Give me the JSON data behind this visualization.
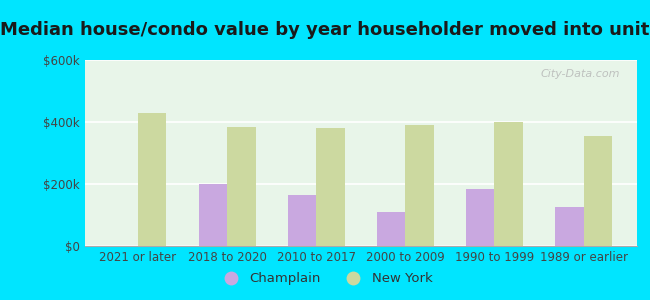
{
  "title": "Median house/condo value by year householder moved into unit",
  "categories": [
    "2021 or later",
    "2018 to 2020",
    "2010 to 2017",
    "2000 to 2009",
    "1990 to 1999",
    "1989 or earlier"
  ],
  "champlain_values": [
    null,
    200000,
    165000,
    110000,
    185000,
    125000
  ],
  "newyork_values": [
    430000,
    385000,
    380000,
    390000,
    400000,
    355000
  ],
  "champlain_color": "#c9a8e0",
  "newyork_color": "#ccd9a0",
  "background_outer": "#00e5ff",
  "background_inner": "#e8f5e9",
  "ylim": [
    0,
    600000
  ],
  "yticks": [
    0,
    200000,
    400000,
    600000
  ],
  "ytick_labels": [
    "$0",
    "$200k",
    "$400k",
    "$600k"
  ],
  "watermark": "City-Data.com",
  "legend_champlain": "Champlain",
  "legend_newyork": "New York",
  "bar_width": 0.32,
  "title_fontsize": 13,
  "tick_fontsize": 8.5
}
